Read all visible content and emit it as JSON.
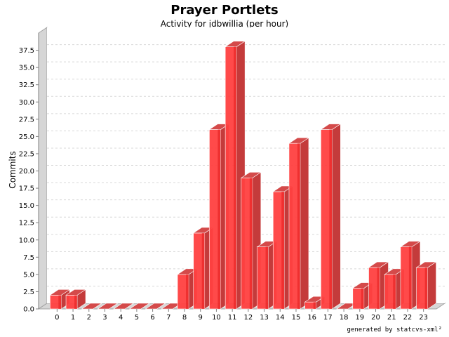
{
  "chart_data": {
    "type": "bar",
    "title": "Prayer Portlets",
    "subtitle": "Activity for jdbwillia (per hour)",
    "xlabel": "",
    "ylabel": "Commits",
    "categories": [
      "0",
      "1",
      "2",
      "3",
      "4",
      "5",
      "6",
      "7",
      "8",
      "9",
      "10",
      "11",
      "12",
      "13",
      "14",
      "15",
      "16",
      "17",
      "18",
      "19",
      "20",
      "21",
      "22",
      "23"
    ],
    "values": [
      2,
      2,
      0,
      0,
      0,
      0,
      0,
      0,
      5,
      11,
      26,
      38,
      19,
      9,
      17,
      24,
      1,
      26,
      0,
      3,
      6,
      5,
      9,
      6
    ],
    "ylim": [
      0,
      40
    ],
    "yticks": [
      "0.0",
      "2.5",
      "5.0",
      "7.5",
      "10.0",
      "12.5",
      "15.0",
      "17.5",
      "20.0",
      "22.5",
      "25.0",
      "27.5",
      "30.0",
      "32.5",
      "35.0",
      "37.5"
    ],
    "grid": true,
    "bar_color": "#ff4040",
    "bar_side_color": "#c43b3b",
    "bar_top_color": "#d44a4a"
  },
  "footer": "generated by statcvs-xml²"
}
